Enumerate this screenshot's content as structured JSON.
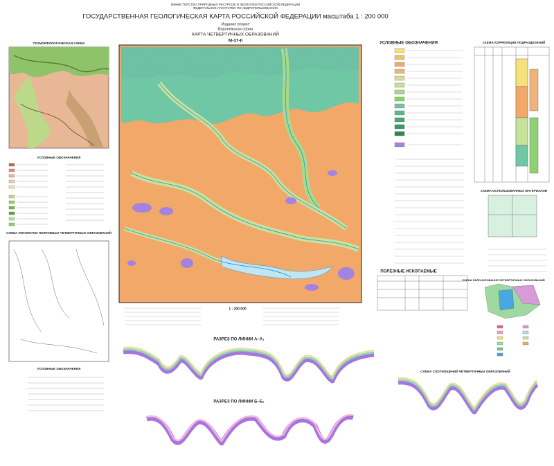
{
  "header": {
    "ministry": "МИНИСТЕРСТВО ПРИРОДНЫХ РЕСУРСОВ И ЭКОЛОГИИ РОССИЙСКОЙ ФЕДЕРАЦИИ",
    "agency": "ФЕДЕРАЛЬНОЕ АГЕНТСТВО ПО НЕДРОПОЛЬЗОВАНИЮ",
    "title": "ГОСУДАРСТВЕННАЯ ГЕОЛОГИЧЕСКАЯ КАРТА РОССИЙСКОЙ ФЕДЕРАЦИИ масштаба 1 : 200 000",
    "edition": "Издание второе",
    "series": "Воронежская серия",
    "map_name": "КАРТА ЧЕТВЕРТИЧНЫХ ОБРАЗОВАНИЙ",
    "sheet": "M-37-II"
  },
  "panels": {
    "geomorph": "ГЕОМОРФОЛОГИЧЕСКАЯ СХЕМА",
    "legend_left": "УСЛОВНЫЕ ОБОЗНАЧЕНИЯ",
    "lithology": "СХЕМА ЛИТОЛОГИИ ПОКРОВНЫХ ЧЕТВЕРТИЧНЫХ ОБРАЗОВАНИЙ",
    "legend_lithology": "УСЛОВНЫЕ ОБОЗНАЧЕНИЯ",
    "legend_main": "УСЛОВНЫЕ ОБОЗНАЧЕНИЯ",
    "minerals": "ПОЛЕЗНЫЕ ИСКОПАЕМЫЕ",
    "correlation": "СХЕМА КОРРЕЛЯЦИИ ПОДРАЗДЕЛЕНИЙ",
    "materials": "СХЕМА ИСПОЛЬЗОВАННЫХ МАТЕРИАЛОВ",
    "zoning": "СХЕМА РАЙОНИРОВАНИЯ ЧЕТВЕРТИЧНЫХ ОБРАЗОВАНИЙ",
    "section_a": "РАЗРЕЗ ПО ЛИНИИ А–А₁",
    "section_b": "РАЗРЕЗ ПО ЛИНИИ Б–Б₁",
    "relations": "СХЕМА СООТНОШЕНИЙ ЧЕТВЕРТИЧНЫХ ОБРАЗОВАНИЙ",
    "scale": "1 : 200 000"
  }
}
